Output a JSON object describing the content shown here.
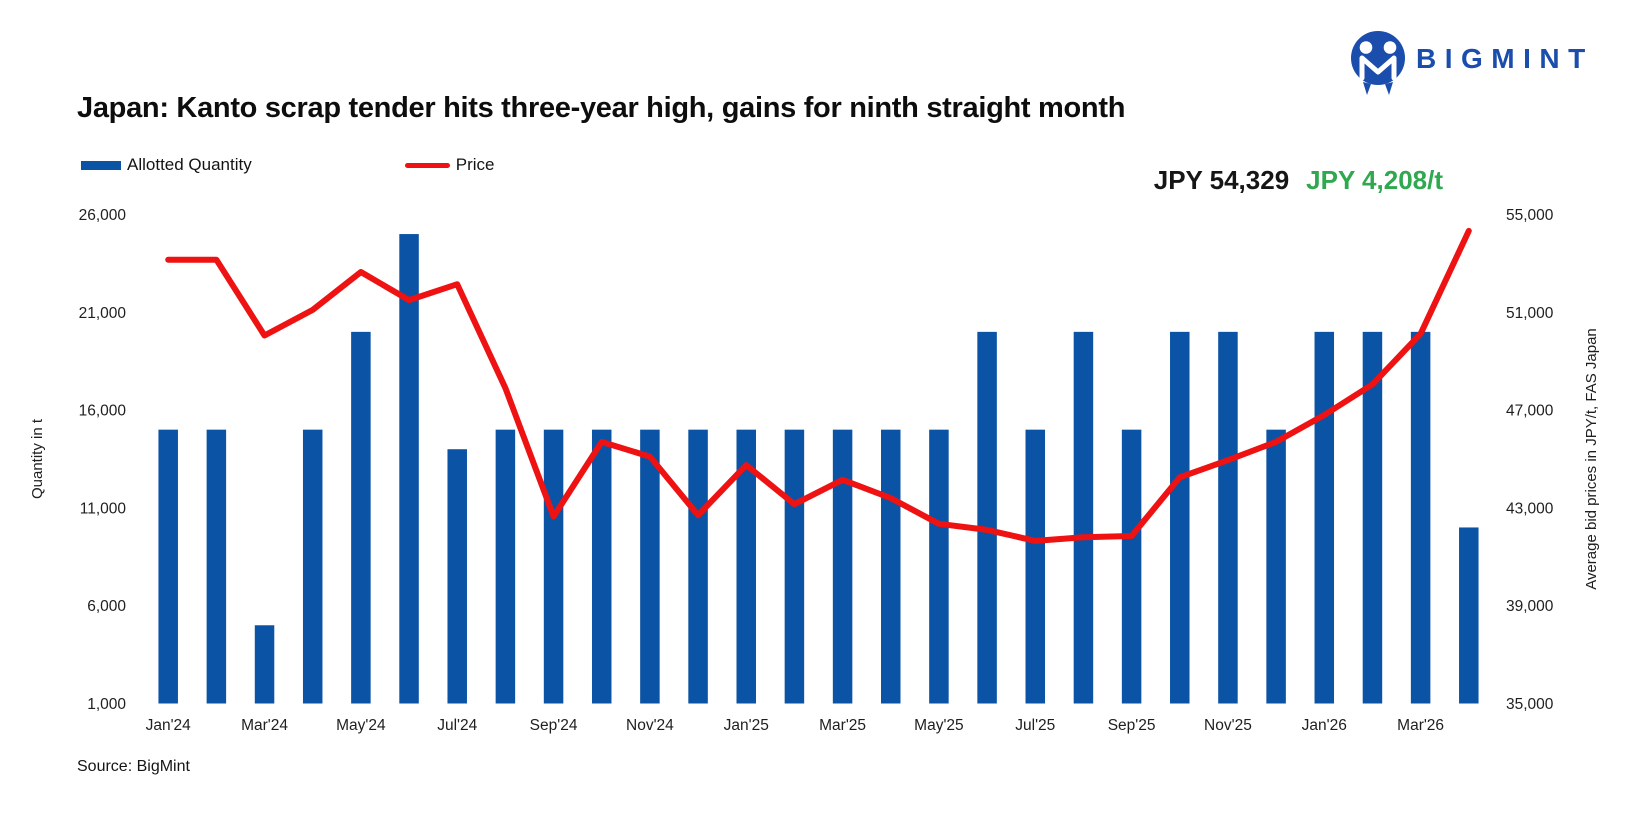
{
  "header": {
    "logo_text": "BIGMINT",
    "title": "Japan: Kanto scrap tender hits three-year high, gains for ninth straight month"
  },
  "legend": {
    "quantity_label": "Allotted Quantity",
    "price_label": "Price"
  },
  "annotation": {
    "latest_price": "JPY 54,329",
    "monthly_change": "JPY 4,208/t"
  },
  "footer": {
    "source": "Source: BigMint"
  },
  "colors": {
    "bar_blue": "#0B53A5",
    "line_red": "#EE1212",
    "logo_blue": "#1B4DAD",
    "change_green": "#2FA84F",
    "text_dark": "#111111"
  },
  "chart_data": {
    "type": "combo",
    "categories": [
      "Jan'24",
      "Feb'24",
      "Mar'24",
      "Apr'24",
      "May'24",
      "Jun'24",
      "Jul'24",
      "Aug'24",
      "Sep'24",
      "Oct'24",
      "Nov'24",
      "Dec'24",
      "Jan'25",
      "Feb'25",
      "Mar'25",
      "Apr'25",
      "May'25",
      "Jun'25",
      "Jul'25",
      "Aug'25",
      "Sep'25",
      "Oct'25",
      "Nov'25",
      "Dec'25",
      "Jan'26",
      "Feb'26",
      "Mar'26",
      "Apr'26"
    ],
    "x_tick_labels": [
      "Jan'24",
      "Mar'24",
      "May'24",
      "Jul'24",
      "Sep'24",
      "Nov'24",
      "Jan'25",
      "Mar'25",
      "May'25",
      "Jul'25",
      "Sep'25",
      "Nov'25",
      "Jan'26",
      "Mar'26"
    ],
    "series": [
      {
        "name": "Allotted Quantity",
        "type": "bar",
        "axis": "left",
        "values": [
          15000,
          15000,
          5000,
          15000,
          20000,
          25000,
          14000,
          15000,
          15000,
          15000,
          15000,
          15000,
          15000,
          15000,
          15000,
          15000,
          15000,
          20000,
          15000,
          20000,
          15000,
          20000,
          20000,
          15000,
          20000,
          20000,
          20000,
          10000
        ]
      },
      {
        "name": "Price",
        "type": "line",
        "axis": "right",
        "values": [
          53150,
          53150,
          50050,
          51100,
          52650,
          51500,
          52150,
          47900,
          42650,
          45700,
          45100,
          42700,
          44750,
          43150,
          44150,
          43400,
          42350,
          42100,
          41650,
          41800,
          41850,
          44250,
          44950,
          45700,
          46800,
          48050,
          50121,
          54329
        ]
      }
    ],
    "left_axis": {
      "label": "Quantity in t",
      "range": [
        1000,
        26000
      ],
      "ticks": [
        26000,
        21000,
        16000,
        11000,
        6000,
        1000
      ]
    },
    "right_axis": {
      "label": "Average bid prices in JPY/t, FAS Japan",
      "range": [
        35000,
        55000
      ],
      "ticks": [
        55000,
        51000,
        47000,
        43000,
        39000,
        35000
      ]
    },
    "grid": false,
    "legend_position": "top-left"
  }
}
